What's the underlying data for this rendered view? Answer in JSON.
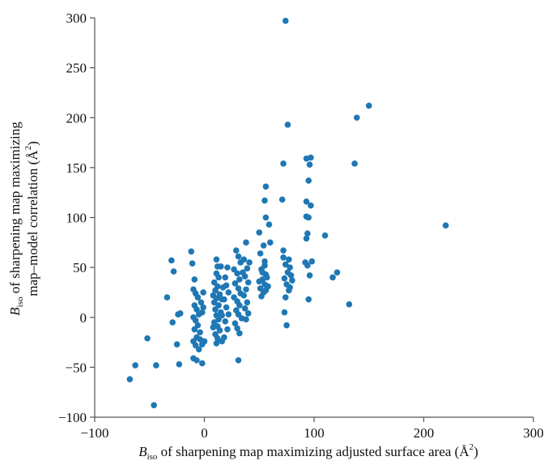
{
  "chart_data": {
    "type": "scatter",
    "title": "",
    "xlabel": {
      "main": "B",
      "sub": "iso",
      "rest": " of sharpening map maximizing adjusted surface area (Å",
      "sup": "2",
      "close": ")"
    },
    "ylabel": {
      "line1_main": "B",
      "line1_sub": "iso",
      "line1_rest": " of sharpening map maximizing",
      "line2_rest": "map–model correlation (Å",
      "line2_sup": "2",
      "line2_close": ")"
    },
    "xlim": [
      -100,
      300
    ],
    "ylim": [
      -100,
      300
    ],
    "xticks": [
      "−100",
      "0",
      "100",
      "200",
      "300"
    ],
    "yticks": [
      "300",
      "250",
      "200",
      "150",
      "100",
      "50",
      "0",
      "−50",
      "−100"
    ],
    "xtick_values": [
      -100,
      0,
      100,
      200,
      300
    ],
    "ytick_values": [
      300,
      250,
      200,
      150,
      100,
      50,
      0,
      -50,
      -100
    ],
    "grid": false,
    "marker_color": "#1f77b4",
    "points": [
      [
        -68,
        -62
      ],
      [
        -63,
        -48
      ],
      [
        -52,
        -21
      ],
      [
        -46,
        -88
      ],
      [
        -44,
        -48
      ],
      [
        -34,
        20
      ],
      [
        -30,
        57
      ],
      [
        -28,
        46
      ],
      [
        -29,
        -5
      ],
      [
        -24,
        3
      ],
      [
        -22,
        4
      ],
      [
        -25,
        -27
      ],
      [
        -23,
        -47
      ],
      [
        -12,
        66
      ],
      [
        -11,
        54
      ],
      [
        -9,
        38
      ],
      [
        -10,
        28
      ],
      [
        -8,
        24
      ],
      [
        -6,
        20
      ],
      [
        -9,
        12
      ],
      [
        -7,
        8
      ],
      [
        -5,
        3
      ],
      [
        -10,
        0
      ],
      [
        -8,
        -3
      ],
      [
        -6,
        -8
      ],
      [
        -9,
        -12
      ],
      [
        -7,
        -20
      ],
      [
        -4,
        -22
      ],
      [
        -10,
        -24
      ],
      [
        -8,
        -28
      ],
      [
        -5,
        -32
      ],
      [
        -2,
        -27
      ],
      [
        -10,
        -41
      ],
      [
        -7,
        -43
      ],
      [
        -2,
        -46
      ],
      [
        -3,
        15
      ],
      [
        -1,
        25
      ],
      [
        -2,
        5
      ],
      [
        -4,
        -15
      ],
      [
        0,
        -24
      ],
      [
        -1,
        10
      ],
      [
        11,
        58
      ],
      [
        12,
        51
      ],
      [
        15,
        51
      ],
      [
        11,
        44
      ],
      [
        13,
        40
      ],
      [
        9,
        35
      ],
      [
        12,
        31
      ],
      [
        10,
        27
      ],
      [
        14,
        23
      ],
      [
        11,
        19
      ],
      [
        9,
        15
      ],
      [
        13,
        12
      ],
      [
        10,
        8
      ],
      [
        15,
        5
      ],
      [
        11,
        2
      ],
      [
        13,
        -2
      ],
      [
        9,
        -5
      ],
      [
        12,
        -9
      ],
      [
        14,
        -13
      ],
      [
        10,
        -17
      ],
      [
        12,
        -21
      ],
      [
        16,
        -24
      ],
      [
        11,
        -26
      ],
      [
        8,
        -10
      ],
      [
        16,
        18
      ],
      [
        17,
        30
      ],
      [
        16,
        2
      ],
      [
        8,
        22
      ],
      [
        21,
        50
      ],
      [
        19,
        40
      ],
      [
        20,
        32
      ],
      [
        22,
        25
      ],
      [
        18,
        18
      ],
      [
        20,
        10
      ],
      [
        22,
        3
      ],
      [
        19,
        -4
      ],
      [
        21,
        -12
      ],
      [
        18,
        -20
      ],
      [
        29,
        67
      ],
      [
        31,
        61
      ],
      [
        33,
        55
      ],
      [
        27,
        48
      ],
      [
        30,
        44
      ],
      [
        32,
        38
      ],
      [
        28,
        34
      ],
      [
        31,
        29
      ],
      [
        33,
        24
      ],
      [
        27,
        20
      ],
      [
        30,
        16
      ],
      [
        32,
        12
      ],
      [
        29,
        7
      ],
      [
        31,
        3
      ],
      [
        34,
        -1
      ],
      [
        28,
        -6
      ],
      [
        30,
        -11
      ],
      [
        32,
        -16
      ],
      [
        31,
        -43
      ],
      [
        38,
        75
      ],
      [
        36,
        58
      ],
      [
        39,
        49
      ],
      [
        37,
        41
      ],
      [
        40,
        35
      ],
      [
        38,
        28
      ],
      [
        36,
        22
      ],
      [
        39,
        15
      ],
      [
        37,
        9
      ],
      [
        40,
        4
      ],
      [
        38,
        -2
      ],
      [
        41,
        55
      ],
      [
        35,
        45
      ],
      [
        50,
        85
      ],
      [
        54,
        72
      ],
      [
        51,
        64
      ],
      [
        55,
        56
      ],
      [
        52,
        48
      ],
      [
        56,
        43
      ],
      [
        53,
        38
      ],
      [
        55,
        33
      ],
      [
        51,
        29
      ],
      [
        54,
        25
      ],
      [
        52,
        21
      ],
      [
        57,
        40
      ],
      [
        58,
        31
      ],
      [
        56,
        27
      ],
      [
        53,
        45
      ],
      [
        55,
        52
      ],
      [
        50,
        36
      ],
      [
        56,
        131
      ],
      [
        55,
        117
      ],
      [
        56,
        100
      ],
      [
        59,
        93
      ],
      [
        60,
        75
      ],
      [
        72,
        154
      ],
      [
        71,
        118
      ],
      [
        74,
        297
      ],
      [
        76,
        193
      ],
      [
        72,
        60
      ],
      [
        74,
        53
      ],
      [
        76,
        45
      ],
      [
        73,
        39
      ],
      [
        75,
        33
      ],
      [
        77,
        27
      ],
      [
        74,
        20
      ],
      [
        73,
        5
      ],
      [
        75,
        -8
      ],
      [
        78,
        50
      ],
      [
        79,
        42
      ],
      [
        72,
        67
      ],
      [
        77,
        58
      ],
      [
        80,
        37
      ],
      [
        78,
        30
      ],
      [
        93,
        159
      ],
      [
        97,
        160
      ],
      [
        96,
        153
      ],
      [
        95,
        137
      ],
      [
        93,
        116
      ],
      [
        97,
        112
      ],
      [
        93,
        101
      ],
      [
        94,
        84
      ],
      [
        93,
        79
      ],
      [
        92,
        55
      ],
      [
        94,
        52
      ],
      [
        96,
        42
      ],
      [
        95,
        18
      ],
      [
        98,
        56
      ],
      [
        95,
        100
      ],
      [
        110,
        82
      ],
      [
        117,
        40
      ],
      [
        121,
        45
      ],
      [
        132,
        13
      ],
      [
        137,
        154
      ],
      [
        139,
        200
      ],
      [
        150,
        212
      ],
      [
        220,
        92
      ]
    ]
  }
}
